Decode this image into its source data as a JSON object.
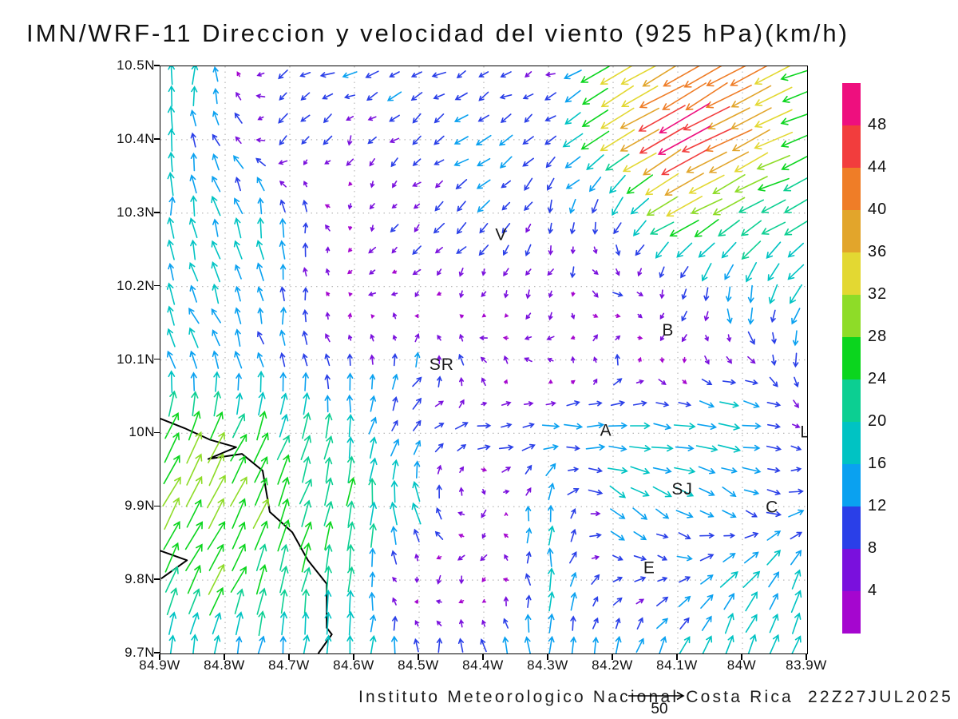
{
  "title": "IMN/WRF-11 Direccion y velocidad del viento (925 hPa)(km/h)",
  "footer": {
    "credit": "Instituto Meteorologico Nacional Costa Rica  22Z27JUL2025",
    "reference_value_label": "50"
  },
  "axes": {
    "lat_ticks": [
      "10.5N",
      "10.4N",
      "10.3N",
      "10.2N",
      "10.1N",
      "10N",
      "9.9N",
      "9.8N",
      "9.7N"
    ],
    "lon_ticks": [
      "84.9W",
      "84.8W",
      "84.7W",
      "84.6W",
      "84.5W",
      "84.4W",
      "84.3W",
      "84.2W",
      "84.1W",
      "84W",
      "83.9W"
    ]
  },
  "colorbar": {
    "labels_top_to_bottom": [
      "48",
      "44",
      "40",
      "36",
      "32",
      "28",
      "24",
      "20",
      "16",
      "12",
      "8",
      "4"
    ]
  },
  "chart_data": {
    "type": "vector_field",
    "title": "IMN/WRF-11 Direccion y velocidad del viento (925 hPa)(km/h)",
    "unit": "km/h",
    "pressure_level": "925 hPa",
    "lon_range": [
      -84.9,
      -83.9
    ],
    "lat_range": [
      9.7,
      10.5
    ],
    "x_tick_labels": [
      "84.9W",
      "84.8W",
      "84.7W",
      "84.6W",
      "84.5W",
      "84.4W",
      "84.3W",
      "84.2W",
      "84.1W",
      "84W",
      "83.9W"
    ],
    "y_tick_labels": [
      "10.5N",
      "10.4N",
      "10.3N",
      "10.2N",
      "10.1N",
      "10N",
      "9.9N",
      "9.8N",
      "9.7N"
    ],
    "grid_on": true,
    "legend_position": "right-colorbar",
    "reference_vector_kmh": 50,
    "speed_levels": [
      4,
      8,
      12,
      16,
      20,
      24,
      28,
      32,
      36,
      40,
      44,
      48
    ],
    "speed_colors": [
      "#a506cf",
      "#7a10dd",
      "#2a3fe8",
      "#0aa1f0",
      "#00c3c3",
      "#0ccf92",
      "#0bd51e",
      "#8edc28",
      "#e3d832",
      "#e2a52b",
      "#ef7d27",
      "#f23d3d",
      "#ee0f7e"
    ],
    "wind_grid": {
      "lons": [
        -84.9,
        -84.8,
        -84.7,
        -84.6,
        -84.5,
        -84.4,
        -84.3,
        -84.2,
        -84.1,
        -84.0,
        -83.9
      ],
      "lats": [
        10.5,
        10.4,
        10.3,
        10.2,
        10.1,
        10.0,
        9.9,
        9.8,
        9.7
      ],
      "u": [
        [
          2,
          0,
          -8,
          -12,
          -10,
          -9,
          -6,
          -30,
          -34,
          -38,
          -20
        ],
        [
          2,
          -6,
          -8,
          -3,
          -8,
          -10,
          -8,
          -26,
          -44,
          -36,
          -24
        ],
        [
          0,
          -5,
          0,
          -2,
          -6,
          -10,
          -3,
          -6,
          -28,
          -22,
          -20
        ],
        [
          -6,
          -6,
          0,
          -3,
          -5,
          -2,
          -3,
          8,
          -2,
          -4,
          -10
        ],
        [
          -5,
          -6,
          -2,
          0,
          4,
          -5,
          -4,
          2,
          -2,
          8,
          -2
        ],
        [
          10,
          12,
          6,
          2,
          8,
          10,
          14,
          16,
          18,
          20,
          4
        ],
        [
          14,
          14,
          10,
          4,
          -6,
          -2,
          2,
          12,
          12,
          8,
          12
        ],
        [
          10,
          12,
          5,
          2,
          -2,
          -3,
          0,
          8,
          9,
          14,
          4
        ],
        [
          2,
          2,
          2,
          2,
          0,
          -4,
          0,
          2,
          6,
          4,
          8
        ]
      ],
      "v": [
        [
          22,
          8,
          -6,
          -3,
          -6,
          -3,
          -2,
          -18,
          -20,
          -22,
          -8
        ],
        [
          18,
          10,
          -8,
          -5,
          -5,
          -8,
          -6,
          -16,
          -25,
          -18,
          -10
        ],
        [
          18,
          16,
          14,
          -5,
          -5,
          -8,
          -8,
          -12,
          -14,
          -12,
          -8
        ],
        [
          16,
          14,
          12,
          -3,
          -4,
          -6,
          -7,
          -3,
          -10,
          -16,
          -14
        ],
        [
          15,
          13,
          12,
          10,
          10,
          5,
          2,
          8,
          -5,
          -3,
          -14
        ],
        [
          24,
          24,
          22,
          18,
          6,
          2,
          0,
          0,
          -2,
          -2,
          -2
        ],
        [
          26,
          26,
          24,
          22,
          20,
          -4,
          16,
          -10,
          -8,
          -6,
          4
        ],
        [
          22,
          24,
          24,
          18,
          -5,
          -4,
          18,
          2,
          2,
          14,
          16
        ],
        [
          16,
          16,
          14,
          18,
          14,
          12,
          14,
          14,
          14,
          18,
          16
        ]
      ]
    },
    "cities": [
      {
        "label": "V",
        "lon": -84.373,
        "lat": 10.271
      },
      {
        "label": "SR",
        "lon": -84.465,
        "lat": 10.094
      },
      {
        "label": "B",
        "lon": -84.115,
        "lat": 10.141
      },
      {
        "label": "A",
        "lon": -84.211,
        "lat": 10.004
      },
      {
        "label": "SJ",
        "lon": -84.093,
        "lat": 9.924
      },
      {
        "label": "C",
        "lon": -83.954,
        "lat": 9.9
      },
      {
        "label": "E",
        "lon": -84.144,
        "lat": 9.817
      },
      {
        "label": "L",
        "lon": -83.903,
        "lat": 10.002
      }
    ],
    "coastline": {
      "main": [
        [
          -84.9,
          10.02
        ],
        [
          -84.863,
          10.007
        ],
        [
          -84.823,
          9.991
        ],
        [
          -84.783,
          9.981
        ],
        [
          -84.826,
          9.965
        ],
        [
          -84.774,
          9.972
        ],
        [
          -84.742,
          9.949
        ],
        [
          -84.731,
          9.893
        ],
        [
          -84.721,
          9.885
        ],
        [
          -84.696,
          9.865
        ],
        [
          -84.672,
          9.827
        ],
        [
          -84.643,
          9.795
        ],
        [
          -84.643,
          9.735
        ],
        [
          -84.635,
          9.726
        ],
        [
          -84.656,
          9.7
        ]
      ],
      "spur": [
        [
          -84.9,
          9.84
        ],
        [
          -84.859,
          9.827
        ],
        [
          -84.899,
          9.802
        ]
      ]
    }
  }
}
